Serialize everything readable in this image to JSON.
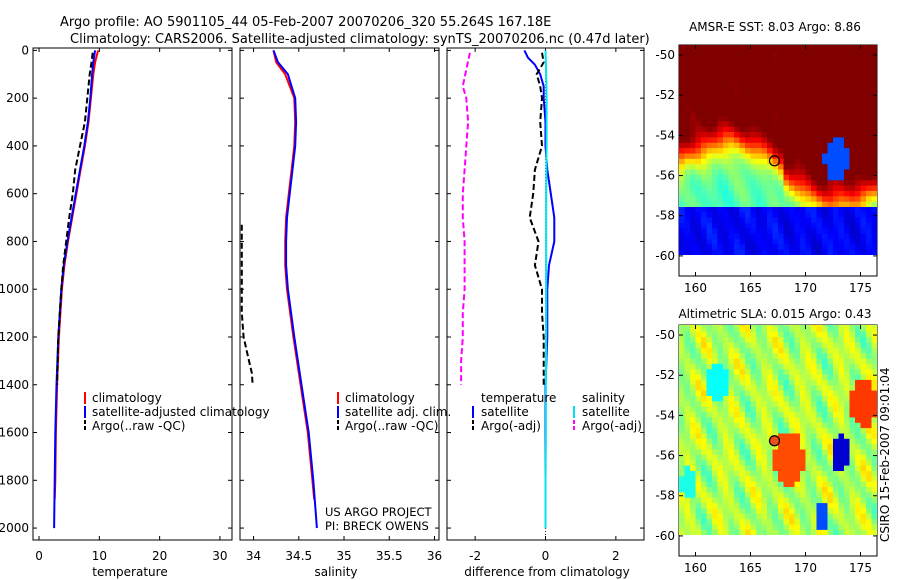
{
  "title": {
    "line1": "Argo profile: AO 5901105_44 05-Feb-2007 20070206_320 55.264S 167.18E",
    "line2": "Climatology: CARS2006. Satellite-adjusted climatology: synTS_20070206.nc (0.47d later)"
  },
  "watermark": "CSIRO 15-Feb-2007 09:01:04",
  "project_credit": {
    "line1": "US ARGO PROJECT",
    "line2": "PI: BRECK OWENS"
  },
  "colors": {
    "climatology": "#ff0000",
    "satellite": "#0000ff",
    "argo": "#000000",
    "salinity_satellite": "#00e5ee",
    "salinity_argo": "#ff00ff"
  },
  "chart_data": [
    {
      "type": "line",
      "name": "temperature-profile",
      "xlabel": "temperature",
      "ylabel": "",
      "xlim": [
        -1,
        32
      ],
      "ylim": [
        2050,
        -10
      ],
      "xticks": [
        0,
        10,
        20,
        30
      ],
      "yticks": [
        0,
        200,
        400,
        600,
        800,
        1000,
        1200,
        1400,
        1600,
        1800,
        2000
      ],
      "legend": {
        "position": "lower-left",
        "items": [
          "climatology",
          "satellite-adjusted climatology",
          "Argo(..raw -QC)"
        ]
      },
      "series": [
        {
          "name": "climatology",
          "color": "#ff0000",
          "style": "solid",
          "depth": [
            0,
            50,
            100,
            200,
            300,
            400,
            500,
            600,
            700,
            800,
            900,
            1000,
            1200,
            1400,
            1600,
            1800,
            1880
          ],
          "values": [
            9.8,
            9.3,
            9.0,
            8.6,
            8.2,
            7.6,
            6.9,
            6.2,
            5.5,
            4.8,
            4.2,
            3.8,
            3.3,
            3.0,
            2.8,
            2.7,
            2.6
          ]
        },
        {
          "name": "satellite-adjusted climatology",
          "color": "#0000ff",
          "style": "solid",
          "depth": [
            0,
            50,
            100,
            200,
            300,
            400,
            500,
            600,
            700,
            800,
            900,
            1000,
            1200,
            1400,
            1600,
            1800,
            2000
          ],
          "values": [
            9.3,
            9.0,
            8.8,
            8.5,
            8.1,
            7.5,
            6.8,
            6.1,
            5.4,
            4.7,
            4.1,
            3.7,
            3.2,
            2.9,
            2.7,
            2.6,
            2.5
          ]
        },
        {
          "name": "Argo(..raw -QC)",
          "color": "#000000",
          "style": "dashed",
          "depth": [
            10,
            50,
            100,
            200,
            300,
            400,
            500,
            600,
            700,
            800,
            900,
            1000,
            1200,
            1400
          ],
          "values": [
            8.9,
            8.7,
            8.4,
            8.0,
            7.6,
            6.8,
            6.0,
            5.6,
            5.0,
            4.5,
            4.0,
            3.7,
            3.2,
            3.0
          ]
        }
      ]
    },
    {
      "type": "line",
      "name": "salinity-profile",
      "xlabel": "salinity",
      "ylabel": "",
      "xlim": [
        33.85,
        36.05
      ],
      "ylim": [
        2050,
        -10
      ],
      "xticks": [
        34,
        34.5,
        35,
        35.5,
        36
      ],
      "legend": {
        "position": "lower-right",
        "items": [
          "climatology",
          "satellite adj. clim.",
          "Argo(..raw -QC)"
        ]
      },
      "series": [
        {
          "name": "climatology",
          "color": "#ff0000",
          "style": "solid",
          "depth": [
            0,
            50,
            100,
            200,
            300,
            400,
            500,
            600,
            700,
            800,
            900,
            1000,
            1200,
            1400,
            1600,
            1800,
            1880
          ],
          "values": [
            34.22,
            34.25,
            34.35,
            34.45,
            34.46,
            34.45,
            34.42,
            34.39,
            34.36,
            34.35,
            34.35,
            34.37,
            34.44,
            34.52,
            34.6,
            34.65,
            34.67
          ]
        },
        {
          "name": "satellite adj. clim.",
          "color": "#0000ff",
          "style": "solid",
          "depth": [
            0,
            50,
            100,
            200,
            300,
            400,
            500,
            600,
            700,
            800,
            900,
            1000,
            1200,
            1400,
            1600,
            1800,
            2000
          ],
          "values": [
            34.22,
            34.27,
            34.38,
            34.46,
            34.47,
            34.46,
            34.43,
            34.4,
            34.37,
            34.36,
            34.36,
            34.38,
            34.45,
            34.53,
            34.61,
            34.66,
            34.7
          ]
        },
        {
          "name": "Argo(..raw -QC)",
          "color": "#000000",
          "style": "dashed",
          "depth": [
            730,
            800,
            900,
            1000,
            1100,
            1200,
            1300,
            1350,
            1400
          ],
          "values": [
            33.87,
            33.87,
            33.87,
            33.87,
            33.87,
            33.89,
            33.95,
            33.98,
            33.99
          ]
        }
      ]
    },
    {
      "type": "line",
      "name": "difference-profile",
      "xlabel": "difference from climatology",
      "ylabel": "",
      "xlim": [
        -2.8,
        2.8
      ],
      "ylim": [
        2050,
        -10
      ],
      "xticks": [
        -2,
        0,
        2
      ],
      "legend": {
        "position": "lower-center",
        "items": [
          "temperature",
          "satellite",
          "Argo(-adj)",
          "salinity",
          "satellite",
          "Argo(-adj)"
        ]
      },
      "series": [
        {
          "name": "temperature satellite",
          "color": "#0000ff",
          "style": "solid",
          "depth": [
            0,
            30,
            60,
            100,
            150,
            200,
            300,
            400,
            500,
            600,
            700,
            800,
            900,
            1000,
            1200,
            1400,
            1600,
            1800,
            2000
          ],
          "values": [
            -0.6,
            -0.5,
            -0.3,
            -0.15,
            -0.05,
            -0.05,
            0.0,
            0.0,
            0.05,
            0.15,
            0.25,
            0.25,
            0.1,
            0.05,
            0.05,
            0.0,
            0.0,
            0.0,
            0.0
          ]
        },
        {
          "name": "temperature Argo(-adj)",
          "color": "#000000",
          "style": "dashed",
          "depth": [
            10,
            50,
            100,
            150,
            200,
            300,
            400,
            500,
            600,
            700,
            800,
            900,
            1000,
            1100,
            1200,
            1300,
            1400
          ],
          "values": [
            -0.1,
            -0.05,
            -0.25,
            -0.15,
            -0.1,
            -0.15,
            -0.1,
            -0.3,
            -0.35,
            -0.45,
            -0.2,
            -0.3,
            -0.1,
            -0.1,
            -0.05,
            -0.05,
            -0.05
          ]
        },
        {
          "name": "salinity satellite",
          "color": "#00e5ee",
          "style": "solid",
          "depth": [
            0,
            100,
            200,
            400,
            600,
            800,
            1000,
            1200,
            1400,
            1600,
            1800,
            2000
          ],
          "values": [
            0.0,
            0.02,
            0.03,
            0.03,
            0.02,
            0.02,
            0.02,
            0.02,
            0.01,
            0.01,
            0.0,
            0.0
          ]
        },
        {
          "name": "salinity Argo(-adj)",
          "color": "#ff00ff",
          "style": "dashed",
          "depth": [
            10,
            80,
            150,
            200,
            300,
            400,
            500,
            600,
            700,
            800,
            900,
            1000,
            1100,
            1200,
            1300,
            1400
          ],
          "values": [
            -2.15,
            -2.25,
            -2.35,
            -2.25,
            -2.2,
            -2.25,
            -2.3,
            -2.35,
            -2.35,
            -2.3,
            -2.3,
            -2.3,
            -2.35,
            -2.35,
            -2.4,
            -2.4
          ]
        }
      ]
    },
    {
      "type": "heatmap",
      "name": "amsre-sst-map",
      "title": "AMSR-E SST: 8.03 Argo: 8.86",
      "xlim": [
        158.5,
        176.5
      ],
      "ylim": [
        -61,
        -49.5
      ],
      "xticks": [
        160,
        165,
        170,
        175
      ],
      "yticks": [
        -50,
        -52,
        -54,
        -56,
        -58,
        -60
      ],
      "marker": {
        "lon": 167.18,
        "lat": -55.264
      }
    },
    {
      "type": "heatmap",
      "name": "altimetric-sla-map",
      "title": "Altimetric SLA: 0.015 Argo: 0.43",
      "xlim": [
        158.5,
        176.5
      ],
      "ylim": [
        -61,
        -49.5
      ],
      "xticks": [
        160,
        165,
        170,
        175
      ],
      "yticks": [
        -50,
        -52,
        -54,
        -56,
        -58,
        -60
      ],
      "marker": {
        "lon": 167.18,
        "lat": -55.264
      }
    }
  ]
}
